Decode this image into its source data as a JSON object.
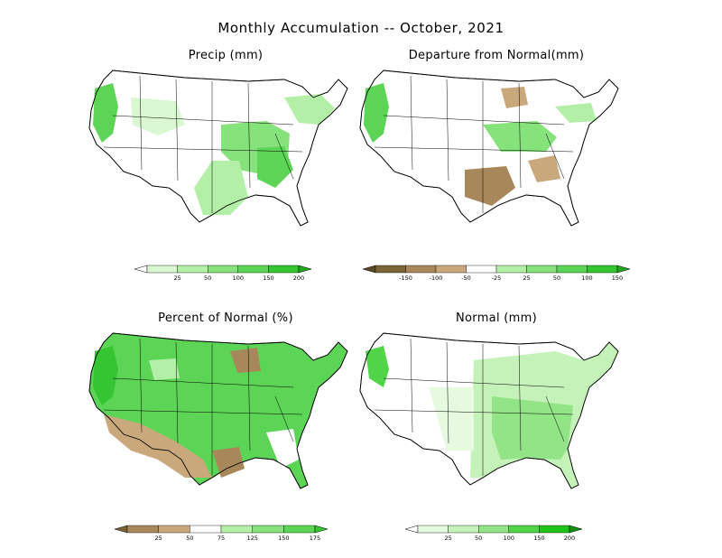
{
  "title": "Monthly Accumulation -- October, 2021",
  "panels": {
    "precip": {
      "title": "Precip (mm)",
      "legend": {
        "labels": [
          "25",
          "50",
          "100",
          "150",
          "200"
        ],
        "colors": [
          "#ffffff",
          "#d9f7d0",
          "#b3efa6",
          "#86e27a",
          "#5cd556",
          "#35c533",
          "#22a81f"
        ]
      }
    },
    "departure": {
      "title": "Departure from Normal(mm)",
      "legend": {
        "labels": [
          "-150",
          "-100",
          "-50",
          "-25",
          "25",
          "50",
          "100",
          "150"
        ],
        "colors": [
          "#5a4a26",
          "#7a6336",
          "#a8885a",
          "#c9a87c",
          "#ffffff",
          "#b3efa6",
          "#86e27a",
          "#5cd556",
          "#35c533",
          "#22a81f"
        ]
      }
    },
    "percent": {
      "title": "Percent of Normal (%)",
      "legend": {
        "labels": [
          "25",
          "50",
          "75",
          "125",
          "150",
          "175"
        ],
        "colors": [
          "#7a6336",
          "#a8885a",
          "#c9a87c",
          "#ffffff",
          "#b3efa6",
          "#86e27a",
          "#5cd556",
          "#35c533"
        ]
      }
    },
    "normal": {
      "title": "Normal (mm)",
      "legend": {
        "labels": [
          "25",
          "50",
          "100",
          "150",
          "200"
        ],
        "colors": [
          "#ffffff",
          "#e6fae0",
          "#c4f2b8",
          "#93e486",
          "#51d447",
          "#1fc31a",
          "#139010"
        ]
      }
    }
  }
}
